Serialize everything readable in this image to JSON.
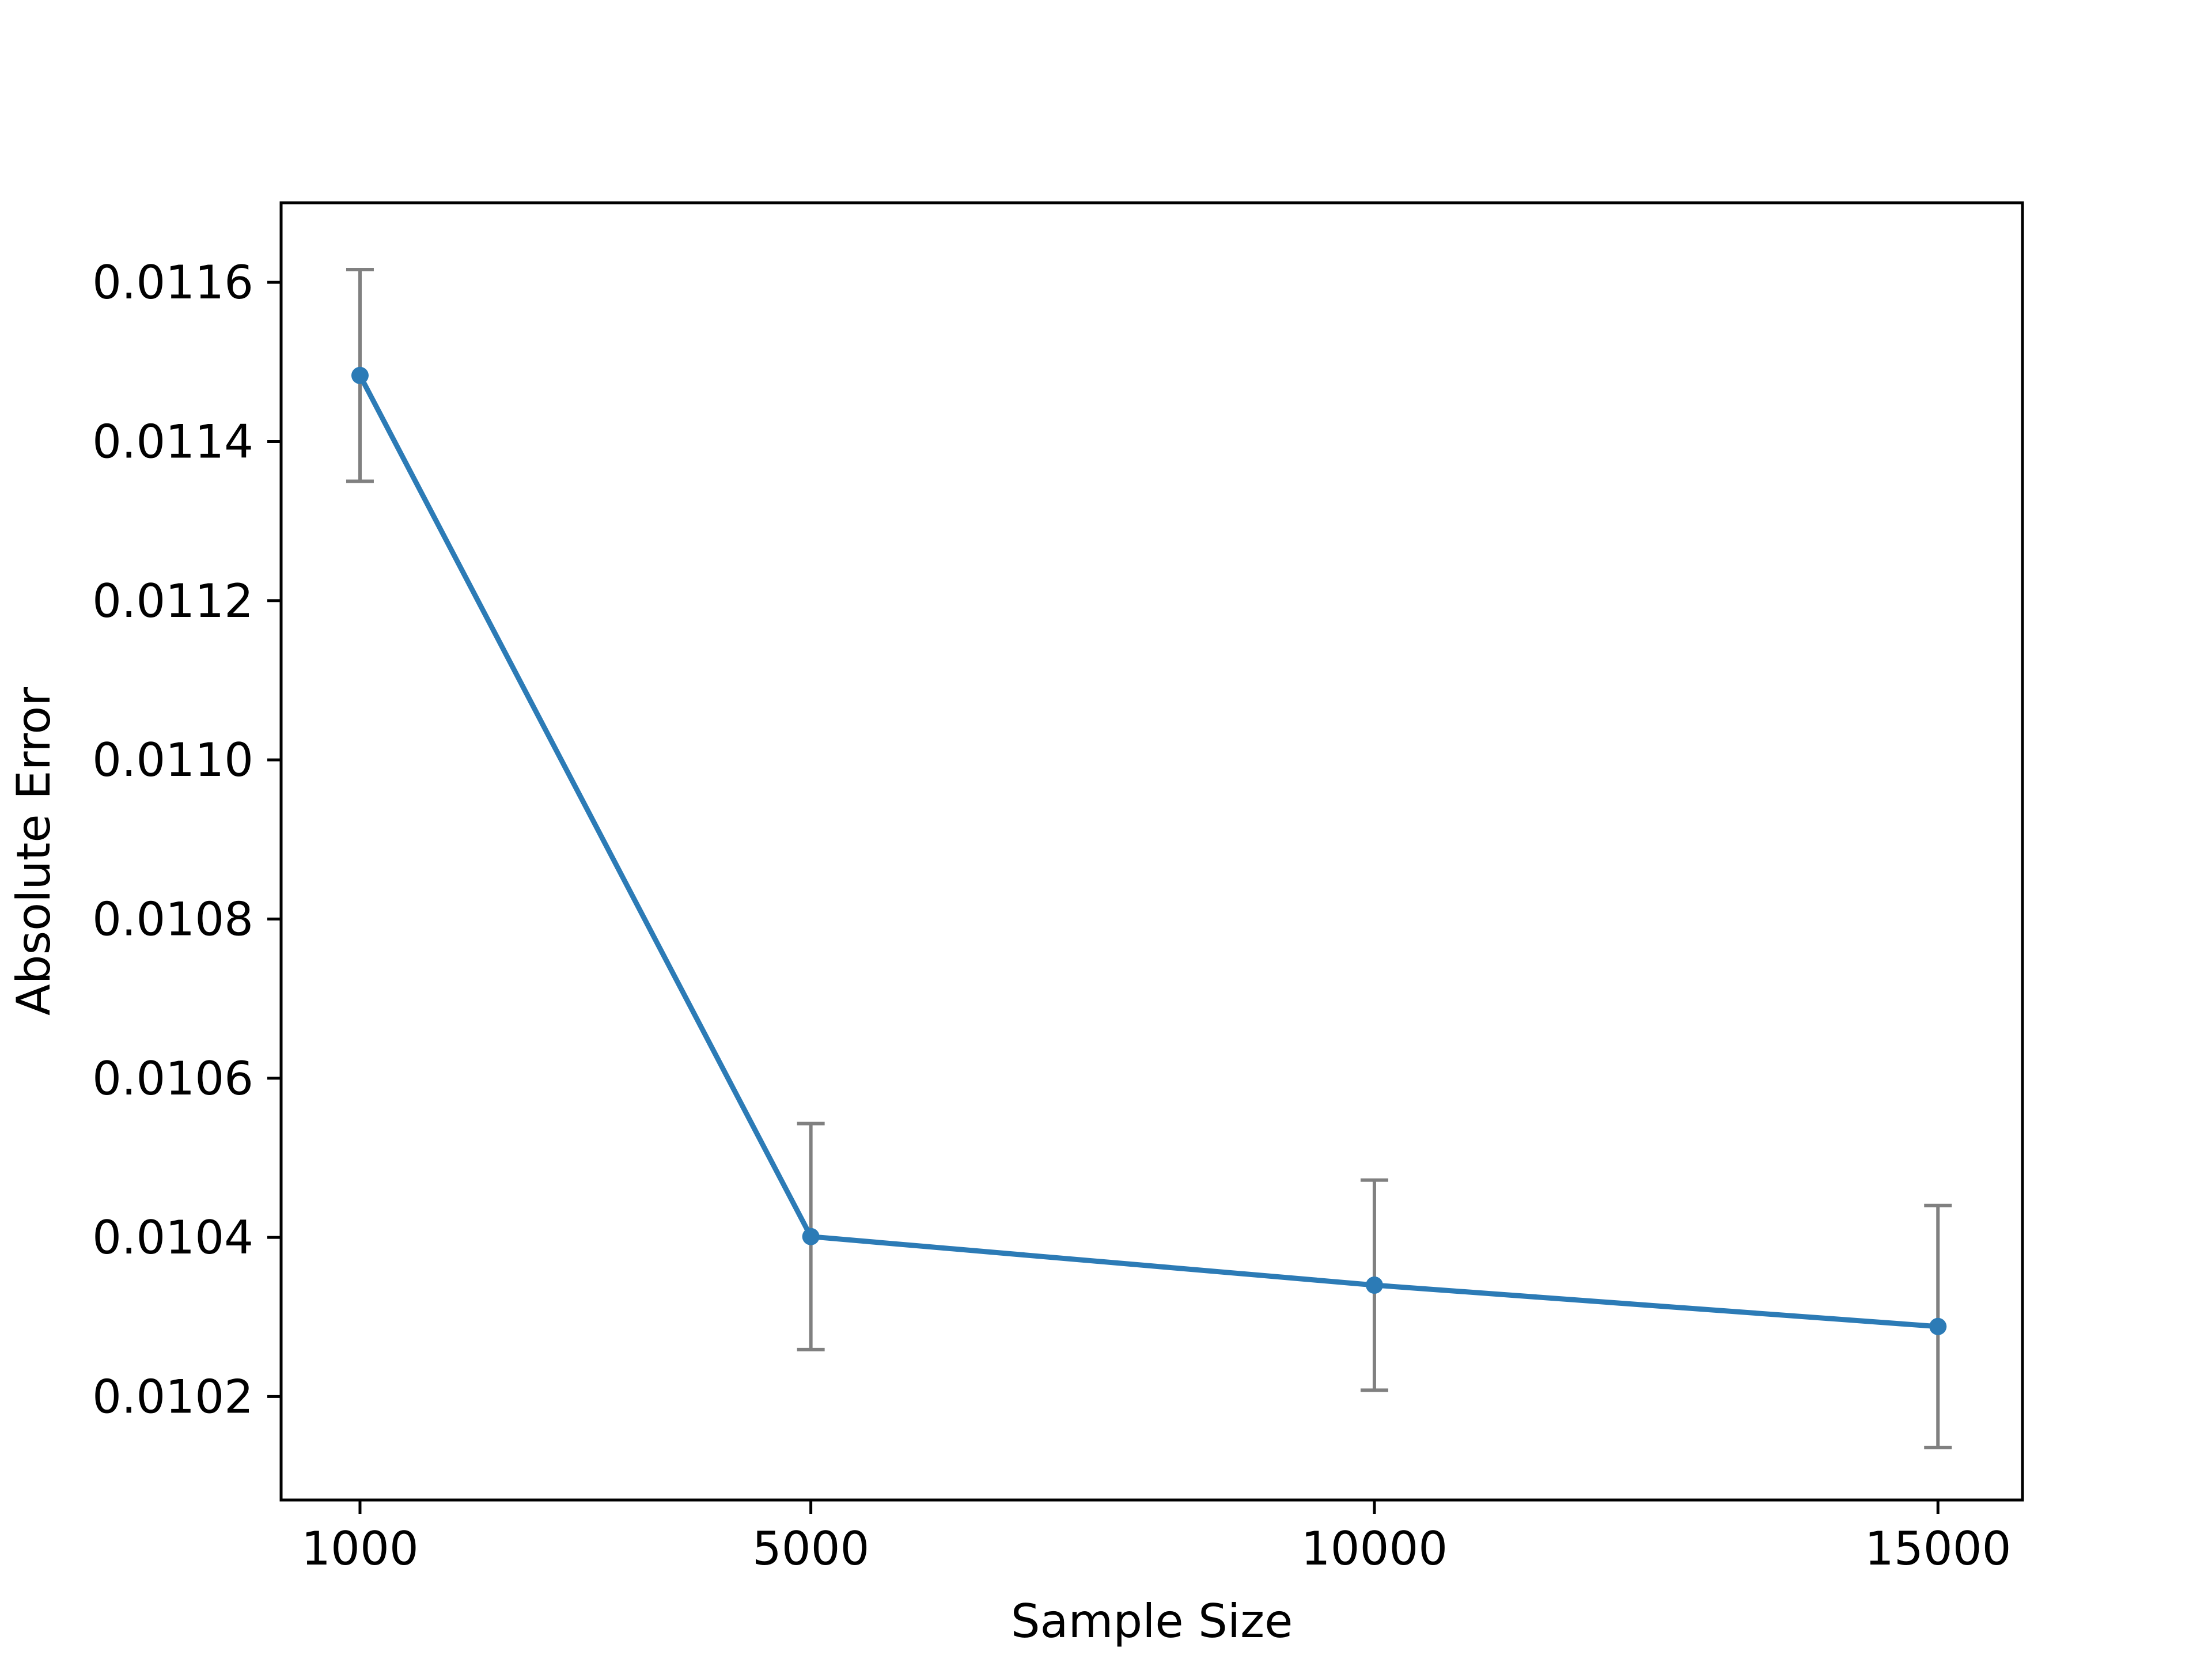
{
  "chart_data": {
    "type": "line",
    "title": "",
    "xlabel": "Sample Size",
    "ylabel": "Absolute Error",
    "x_ticks": [
      "1000",
      "5000",
      "10000",
      "15000"
    ],
    "y_ticks": [
      "0.0102",
      "0.0104",
      "0.0106",
      "0.0108",
      "0.0110",
      "0.0112",
      "0.0114",
      "0.0116"
    ],
    "xlim": [
      300,
      15750
    ],
    "ylim": [
      0.01007,
      0.0117
    ],
    "grid": false,
    "legend": null,
    "series": [
      {
        "x": [
          1000,
          5000,
          10000,
          15000
        ],
        "y": [
          0.011483,
          0.010401,
          0.01034,
          0.010288
        ],
        "yerr": [
          0.000133,
          0.000142,
          0.000132,
          0.000152
        ],
        "color": "#2c7bb6",
        "errorbar_color": "#808080",
        "marker": "circle"
      }
    ]
  }
}
